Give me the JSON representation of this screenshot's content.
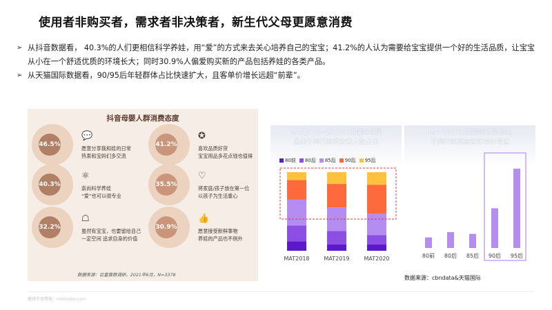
{
  "title": "使用者非购买者，需求者非决策者，新生代父母更愿意消费",
  "bullets": [
    "从抖音数据看， 40.3%的人们更相信科学养娃，用“爱”的方式来去关心培养自己的宝宝；41.2%的人认为需要给宝宝提供一个好的生活品质，让宝宝从小在一个舒适优质的环境长大；同时30.9%人偏爱购买新的产品包括养娃的各类产品。",
    "从天猫国际数据看，90/95后年轻群体占比快速扩大，且客单价增长远超“前辈”。"
  ],
  "left_panel": {
    "title": "抖音母婴人群消费态度",
    "items": [
      {
        "pct": "46.5%",
        "text": "愿意分享我和娃的日常\n热衷和宝妈们多交流",
        "icon": "chat-icon"
      },
      {
        "pct": "41.2%",
        "text": "喜欢品质好货\n宝宝用品多花点钱也值得",
        "icon": "star-badge-icon"
      },
      {
        "pct": "40.3%",
        "text": "崇尚科学养娃\n“爱”也可以很专业",
        "icon": "atom-icon"
      },
      {
        "pct": "35.5%",
        "text": "将家庭/孩子放在第一位\n以孩子为生活重心",
        "icon": "heart-hands-icon"
      },
      {
        "pct": "32.2%",
        "text": "虽然有宝宝，也要留给自己\n一定空间 追求自身的价值",
        "icon": "sofa-icon"
      },
      {
        "pct": "30.9%",
        "text": "愿意接受新鲜事物\n养娃的产品也不例外",
        "icon": "thumb-icon"
      }
    ],
    "source": "数据来源：巨量算数调研，2021年6月，N=3378"
  },
  "chart_data": [
    {
      "type": "bar",
      "stacked": true,
      "title": "MAT2018~2020天猫国际母婴\n品类不同代际消费者人数占比",
      "categories": [
        "MAT2018",
        "MAT2019",
        "MAT2020"
      ],
      "series": [
        {
          "name": "80前",
          "color": "#5b19c9",
          "values": [
            12,
            8,
            8
          ]
        },
        {
          "name": "80后",
          "color": "#8b4fe3",
          "values": [
            20,
            17,
            12
          ]
        },
        {
          "name": "85后",
          "color": "#b58cf0",
          "values": [
            33,
            30,
            27
          ]
        },
        {
          "name": "90后",
          "color": "#ff6a3d",
          "values": [
            25,
            30,
            37
          ]
        },
        {
          "name": "95后",
          "color": "#ffc23e",
          "values": [
            10,
            15,
            16
          ]
        }
      ],
      "ylim": [
        0,
        100
      ]
    },
    {
      "type": "bar",
      "title": "MAT2020天猫国际母婴品类\n不同代际消费者客单价增速",
      "categories": [
        "80前",
        "80后",
        "85后",
        "90后",
        "95后"
      ],
      "values": [
        12,
        18,
        16,
        45,
        90
      ],
      "colors": [
        "#b58cf0",
        "#b58cf0",
        "#b58cf0",
        "#b58cf0",
        "#b58cf0"
      ],
      "ylim": [
        0,
        100
      ]
    }
  ],
  "chart_source": "数据来源：cbndata&天猫国际",
  "footer": "魔镜市场情报：mktindex.com"
}
